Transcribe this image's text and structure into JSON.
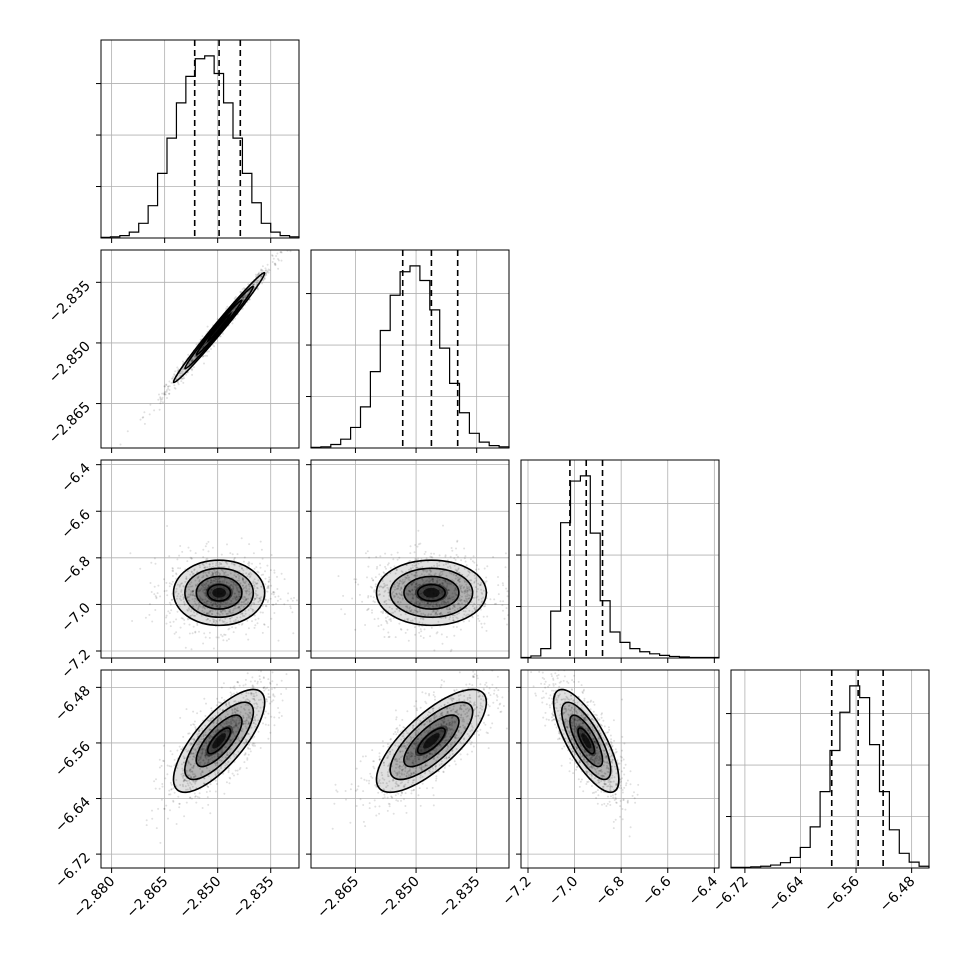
{
  "chart_data": {
    "type": "corner",
    "n_params": 4,
    "params": [
      {
        "range": [
          -2.883,
          -2.827
        ],
        "ticks": [
          -2.88,
          -2.865,
          -2.85,
          -2.835
        ],
        "tick_labels": [
          "−2.880",
          "−2.865",
          "−2.850",
          "−2.835"
        ],
        "median": -2.8496,
        "q16": -2.8565,
        "q84": -2.8436
      },
      {
        "range": [
          -2.876,
          -2.827
        ],
        "ticks": [
          -2.865,
          -2.85,
          -2.835
        ],
        "tick_labels": [
          "−2.865",
          "−2.850",
          "−2.835"
        ],
        "median": -2.8462,
        "q16": -2.8533,
        "q84": -2.8397
      },
      {
        "range": [
          -7.23,
          -6.38
        ],
        "ticks": [
          -7.2,
          -7.0,
          -6.8,
          -6.6,
          -6.4
        ],
        "tick_labels": [
          "−7.2",
          "−7.0",
          "−6.8",
          "−6.6",
          "−6.4"
        ],
        "median": -6.95,
        "q16": -7.02,
        "q84": -6.88
      },
      {
        "range": [
          -6.74,
          -6.455
        ],
        "ticks": [
          -6.72,
          -6.64,
          -6.56,
          -6.48
        ],
        "tick_labels": [
          "−6.72",
          "−6.64",
          "−6.56",
          "−6.48"
        ],
        "median": -6.557,
        "q16": -6.595,
        "q84": -6.521
      }
    ],
    "histograms": [
      {
        "param": 0,
        "values": [
          1,
          2,
          4,
          10,
          25,
          55,
          110,
          170,
          230,
          275,
          305,
          310,
          280,
          230,
          170,
          110,
          60,
          25,
          10,
          4,
          2
        ]
      },
      {
        "param": 1,
        "values": [
          1,
          2,
          6,
          15,
          35,
          70,
          130,
          200,
          260,
          300,
          310,
          285,
          235,
          170,
          110,
          60,
          25,
          10,
          4,
          2
        ]
      },
      {
        "param": 2,
        "values": [
          1,
          4,
          18,
          90,
          260,
          340,
          350,
          240,
          110,
          50,
          30,
          18,
          12,
          8,
          5,
          3,
          2,
          1,
          1,
          1
        ]
      },
      {
        "param": 3,
        "values": [
          1,
          1,
          2,
          3,
          5,
          9,
          18,
          35,
          70,
          130,
          200,
          265,
          310,
          290,
          210,
          130,
          65,
          25,
          10,
          3
        ]
      }
    ],
    "joint": [
      {
        "x": 0,
        "y": 1,
        "correlation": 0.99
      },
      {
        "x": 0,
        "y": 2,
        "correlation": 0.0
      },
      {
        "x": 1,
        "y": 2,
        "correlation": 0.0
      },
      {
        "x": 0,
        "y": 3,
        "correlation": 0.75
      },
      {
        "x": 1,
        "y": 3,
        "correlation": 0.75
      },
      {
        "x": 2,
        "y": 3,
        "correlation": -0.75
      }
    ],
    "grid": true
  }
}
